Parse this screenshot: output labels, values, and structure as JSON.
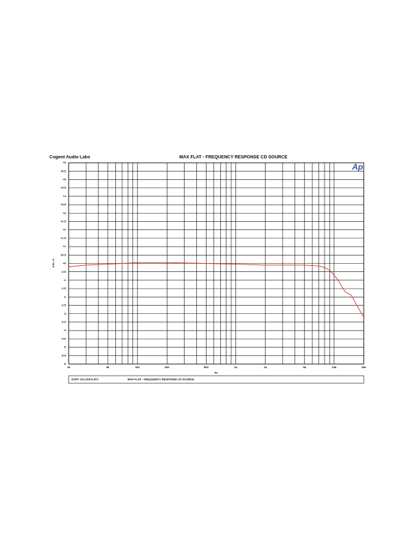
{
  "chart_data": {
    "type": "line",
    "title": "MAX FLAT  -  FREQUENCY RESPONSE   CD SOURCE",
    "subtitle": "Cogent Audio Labs",
    "logo": "Ap",
    "x_label": "Hz",
    "y_label": "d B r A",
    "legend_note": "MAX FLAT  -  FREQUENCY RESPONSE     CD SOURCE",
    "legend_file": "SONY 101.CDFX.AT2",
    "x": [
      20,
      30,
      50,
      70,
      100,
      200,
      500,
      1000,
      2000,
      5000,
      7000,
      8000,
      9000,
      10000,
      11000,
      12000,
      13000,
      15000,
      17000,
      20000
    ],
    "series": [
      {
        "name": "CD SOURCE",
        "color": "#d9332b",
        "values": [
          -0.2,
          -0.1,
          -0.05,
          0.0,
          0.05,
          0.05,
          0.0,
          -0.05,
          -0.1,
          -0.1,
          -0.15,
          -0.25,
          -0.4,
          -0.7,
          -1.0,
          -1.4,
          -1.7,
          -1.9,
          -2.5,
          -3.2
        ]
      }
    ],
    "log_x": true,
    "xlim": [
      20,
      20000
    ],
    "xticks": [
      20,
      50,
      100,
      200,
      500,
      {
        "value": 1000,
        "label": "1k"
      },
      {
        "value": 2000,
        "label": "2k"
      },
      {
        "value": 5000,
        "label": "5k"
      },
      {
        "value": 10000,
        "label": "10k"
      },
      {
        "value": 20000,
        "label": "20k"
      }
    ],
    "x_minor_ticks": [
      30,
      40,
      60,
      70,
      80,
      90,
      300,
      400,
      600,
      700,
      800,
      900,
      3000,
      4000,
      6000,
      7000,
      8000,
      9000
    ],
    "ylim": [
      -6,
      6
    ],
    "yticks": [
      {
        "value": 6,
        "label": "+6"
      },
      {
        "value": 5.5,
        "label": "+5.5"
      },
      {
        "value": 5,
        "label": "+5"
      },
      {
        "value": 4.5,
        "label": "+4.5"
      },
      {
        "value": 4,
        "label": "+4"
      },
      {
        "value": 3.5,
        "label": "+3.5"
      },
      {
        "value": 3,
        "label": "+3"
      },
      {
        "value": 2.5,
        "label": "+2.5"
      },
      {
        "value": 2,
        "label": "+2"
      },
      {
        "value": 1.5,
        "label": "+1.5"
      },
      {
        "value": 1,
        "label": "+1"
      },
      {
        "value": 0.5,
        "label": "+0.5"
      },
      {
        "value": 0,
        "label": "+0"
      },
      -0.5,
      -1,
      -1.5,
      -2,
      -2.5,
      -3,
      -3.5,
      -4,
      -4.5,
      -5,
      -5.5,
      -6
    ],
    "grid": true
  }
}
